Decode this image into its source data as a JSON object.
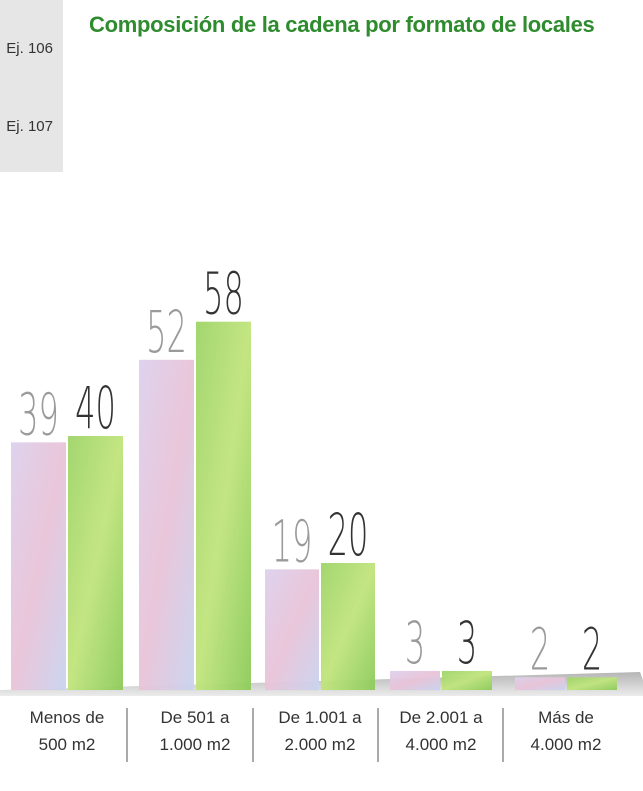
{
  "sidebar": {
    "items": [
      {
        "label": "Ej. 106"
      },
      {
        "label": "Ej. 107"
      }
    ]
  },
  "chart_data": {
    "type": "bar",
    "title": "Composición de la cadena por formato de locales",
    "xlabel": "",
    "ylabel": "",
    "categories": [
      [
        "Menos de",
        "500 m2"
      ],
      [
        "De 501 a",
        "1.000 m2"
      ],
      [
        "De 1.001 a",
        "2.000 m2"
      ],
      [
        "De 2.001 a",
        "4.000 m2"
      ],
      [
        "Más de",
        "4.000 m2"
      ]
    ],
    "series": [
      {
        "values": [
          39,
          52,
          19,
          3,
          2
        ]
      },
      {
        "values": [
          40,
          58,
          20,
          3,
          2
        ]
      }
    ],
    "ylim": [
      0,
      60
    ],
    "grid": false,
    "legend": "none",
    "colors": {
      "series1_top": "#dcd0ec",
      "series1_mid": "#e9c3d8",
      "series1_bottom": "#c9d3ef",
      "series2_top": "#9ed468",
      "series2_mid": "#c0e47c",
      "series2_bottom": "#8ccb5a",
      "title": "#2e8b2e",
      "value_text_series1": "#9a9a9a",
      "value_text_series2": "#333333"
    }
  }
}
